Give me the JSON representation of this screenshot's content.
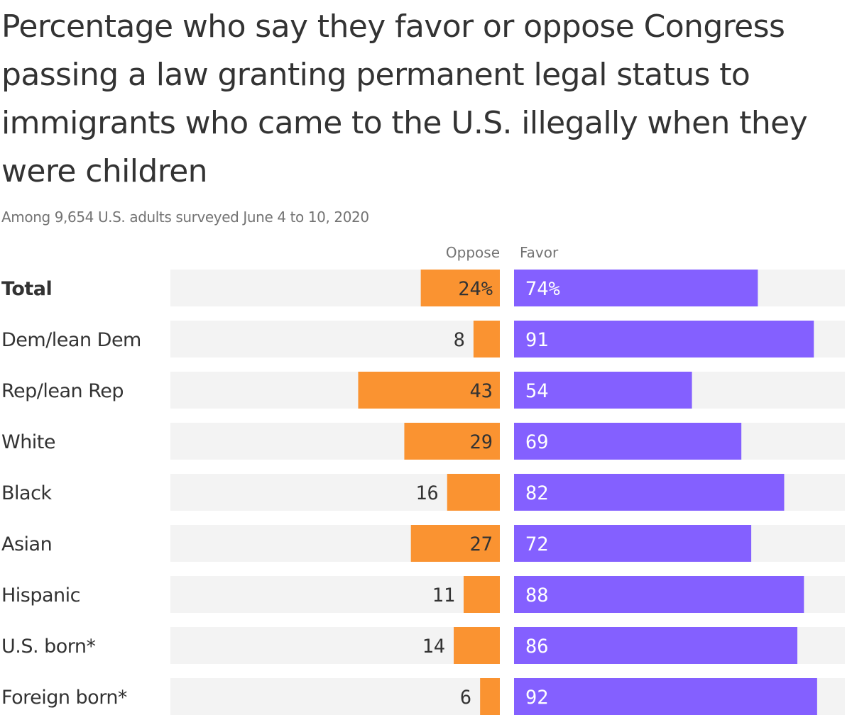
{
  "title": "Percentage who say they favor or oppose Congress passing a law granting permanent legal status to immigrants who came to the U.S. illegally when they were children",
  "subtitle": "Among 9,654 U.S. adults surveyed June 4 to 10, 2020",
  "colors": {
    "oppose": "#fa9331",
    "favor": "#8460ff",
    "track": "#f3f3f3",
    "text": "#333333",
    "muted": "#737373",
    "favor_label": "#ffffff"
  },
  "chart_data": {
    "type": "bar",
    "orientation": "horizontal-diverging",
    "title": "Percentage who say they favor or oppose Congress passing a law granting permanent legal status to immigrants who came to the U.S. illegally when they were children",
    "subtitle": "Among 9,654 U.S. adults surveyed June 4 to 10, 2020",
    "xlim": [
      0,
      100
    ],
    "grid": false,
    "legend_position": "top-center",
    "categories": [
      "Total",
      "Dem/lean Dem",
      "Rep/lean Rep",
      "White",
      "Black",
      "Asian",
      "Hispanic",
      "U.S. born*",
      "Foreign born*"
    ],
    "series": [
      {
        "name": "Oppose",
        "values": [
          24,
          8,
          43,
          29,
          16,
          27,
          11,
          14,
          6
        ],
        "labels": [
          "24%",
          "8",
          "43",
          "29",
          "16",
          "27",
          "11",
          "14",
          "6"
        ]
      },
      {
        "name": "Favor",
        "values": [
          74,
          91,
          54,
          69,
          82,
          72,
          88,
          86,
          92
        ],
        "labels": [
          "74%",
          "91",
          "54",
          "69",
          "82",
          "72",
          "88",
          "86",
          "92"
        ]
      }
    ]
  }
}
